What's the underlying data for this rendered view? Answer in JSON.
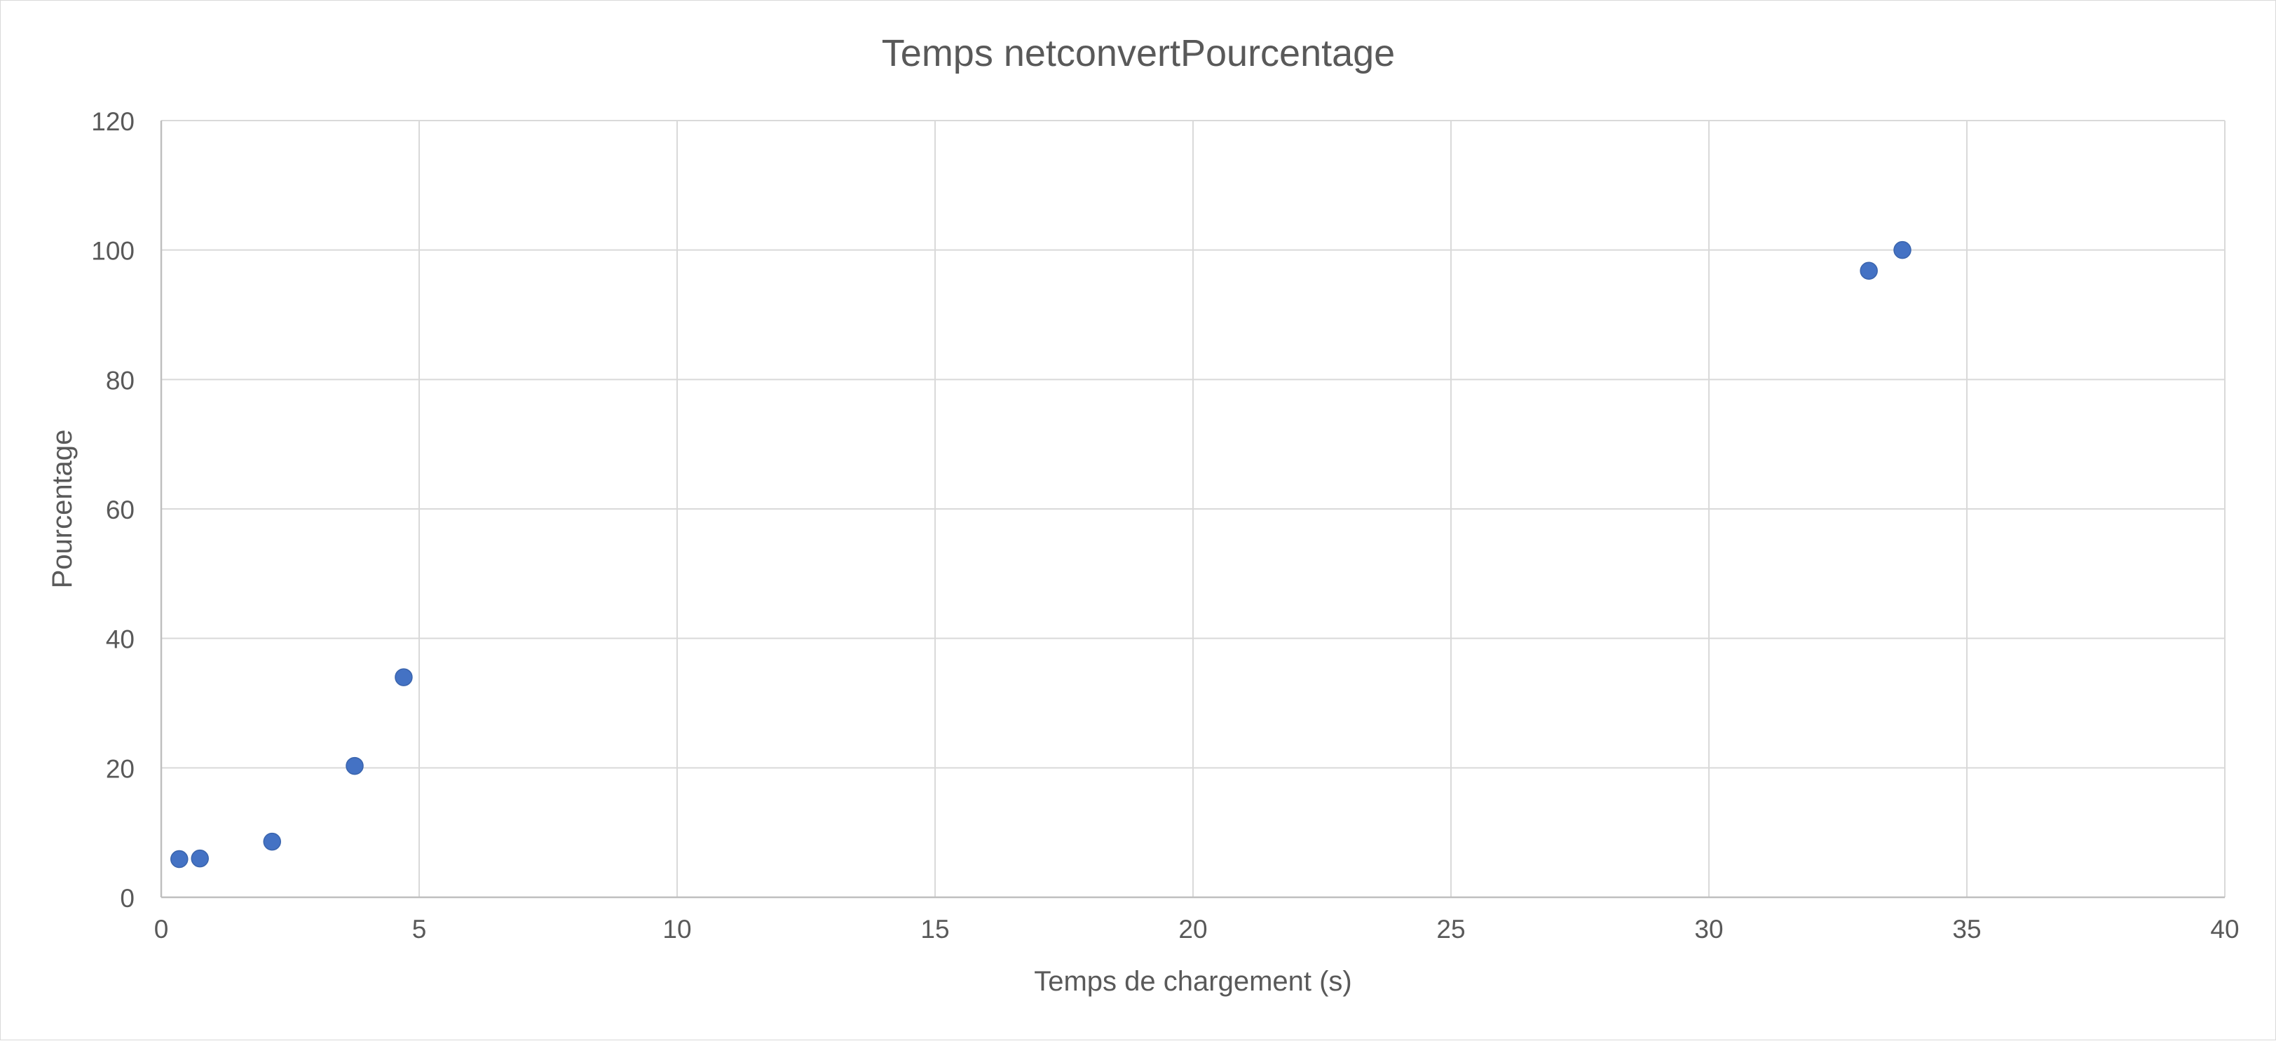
{
  "chart_data": {
    "type": "scatter",
    "title": "Temps netconvertPourcentage",
    "xlabel": "Temps de chargement (s)",
    "ylabel": "Pourcentage",
    "xlim": [
      0,
      40
    ],
    "ylim": [
      0,
      120
    ],
    "x_ticks": [
      "0",
      "5",
      "10",
      "15",
      "20",
      "25",
      "30",
      "35",
      "40"
    ],
    "y_ticks": [
      "0",
      "20",
      "40",
      "60",
      "80",
      "100",
      "120"
    ],
    "grid": true,
    "legend": "none",
    "marker_color": "#4472C4",
    "series": [
      {
        "points": [
          {
            "x": 0.35,
            "y": 5.9
          },
          {
            "x": 0.75,
            "y": 6.0
          },
          {
            "x": 2.15,
            "y": 8.6
          },
          {
            "x": 3.75,
            "y": 20.3
          },
          {
            "x": 4.7,
            "y": 34.0
          },
          {
            "x": 33.1,
            "y": 96.8
          },
          {
            "x": 33.75,
            "y": 100.0
          }
        ]
      }
    ]
  }
}
